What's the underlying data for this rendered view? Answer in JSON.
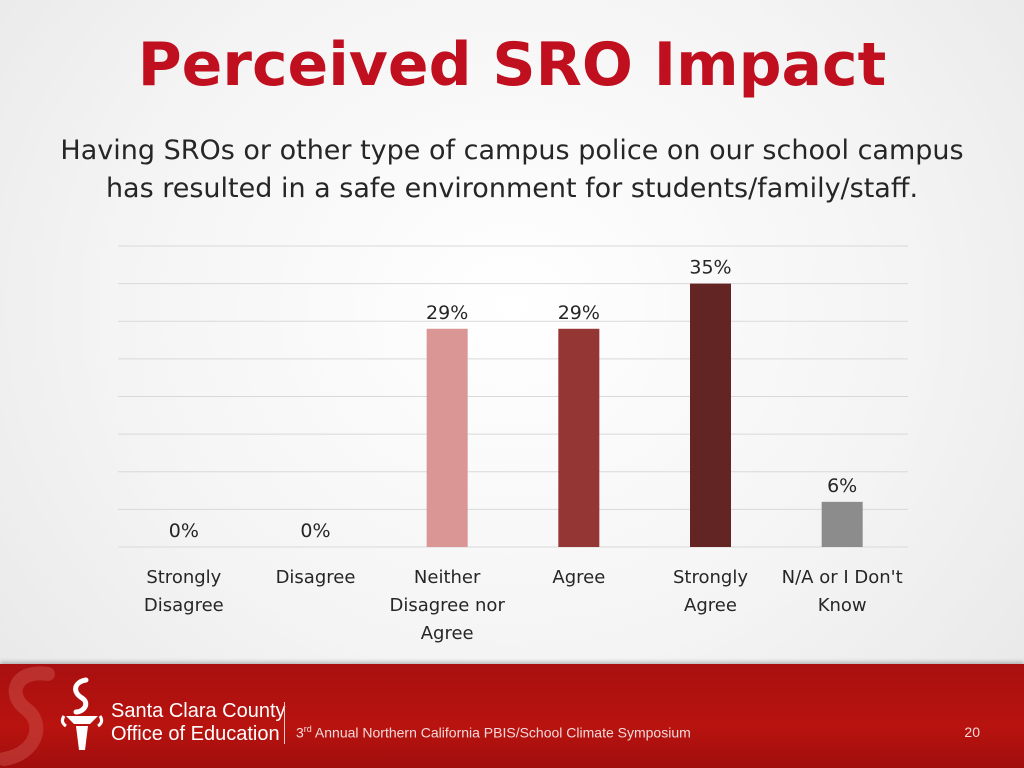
{
  "slide": {
    "title": "Perceived SRO Impact",
    "subtitle_line1": "Having SROs or other type of campus police on our school campus",
    "subtitle_line2": "has resulted in a safe environment for students/family/staff."
  },
  "chart_data": {
    "type": "bar",
    "categories": [
      [
        "Strongly",
        "Disagree"
      ],
      [
        "Disagree"
      ],
      [
        "Neither",
        "Disagree nor",
        "Agree"
      ],
      [
        "Agree"
      ],
      [
        "Strongly",
        "Agree"
      ],
      [
        "N/A or I Don't",
        "Know"
      ]
    ],
    "values": [
      0,
      0,
      29,
      29,
      35,
      6
    ],
    "value_labels": [
      "0%",
      "0%",
      "29%",
      "29%",
      "35%",
      "6%"
    ],
    "colors": [
      "#e6b9b8",
      "#e6b9b8",
      "#d99694",
      "#943634",
      "#632523",
      "#8c8c8c"
    ],
    "ylim": [
      0,
      40
    ],
    "grid": true,
    "legend": "none"
  },
  "footer": {
    "org_line1": "Santa Clara County",
    "org_line2": "Office of Education",
    "event_ordinal": "3",
    "event_suffix": "rd",
    "event_text": " Annual  Northern California PBIS/School Climate Symposium",
    "page_number": "20",
    "colors": {
      "band": "#b8130f",
      "text": "#ffffff"
    }
  }
}
